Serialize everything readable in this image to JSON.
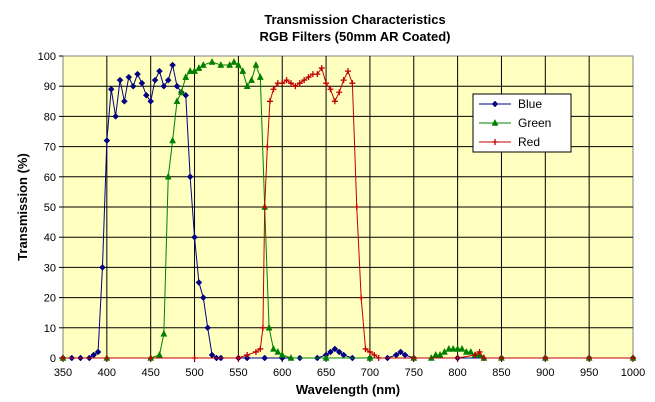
{
  "chart_data": {
    "type": "line",
    "title": "Transmission Characteristics",
    "subtitle": "RGB Filters (50mm AR Coated)",
    "xlabel": "Wavelength (nm)",
    "ylabel": "Transmission (%)",
    "xlim": [
      350,
      1000
    ],
    "ylim": [
      0,
      100
    ],
    "x_ticks": [
      350,
      400,
      450,
      500,
      550,
      600,
      650,
      700,
      750,
      800,
      850,
      900,
      950,
      1000
    ],
    "y_ticks": [
      0,
      10,
      20,
      30,
      40,
      50,
      60,
      70,
      80,
      90,
      100
    ],
    "grid": true,
    "legend_position": "top-right",
    "plot_background": "#FFFFC0",
    "series": [
      {
        "name": "Blue",
        "color": "#000080",
        "marker": "diamond",
        "points": [
          [
            350,
            0
          ],
          [
            360,
            0
          ],
          [
            370,
            0
          ],
          [
            380,
            0
          ],
          [
            385,
            1
          ],
          [
            390,
            2
          ],
          [
            395,
            30
          ],
          [
            400,
            72
          ],
          [
            405,
            89
          ],
          [
            410,
            80
          ],
          [
            415,
            92
          ],
          [
            420,
            85
          ],
          [
            425,
            93
          ],
          [
            430,
            90
          ],
          [
            435,
            94
          ],
          [
            440,
            91
          ],
          [
            445,
            87
          ],
          [
            450,
            85
          ],
          [
            455,
            92
          ],
          [
            460,
            95
          ],
          [
            465,
            90
          ],
          [
            470,
            92
          ],
          [
            475,
            97
          ],
          [
            480,
            90
          ],
          [
            485,
            88
          ],
          [
            490,
            87
          ],
          [
            495,
            60
          ],
          [
            500,
            40
          ],
          [
            505,
            25
          ],
          [
            510,
            20
          ],
          [
            515,
            10
          ],
          [
            520,
            1
          ],
          [
            525,
            0
          ],
          [
            530,
            0
          ],
          [
            550,
            0
          ],
          [
            560,
            0
          ],
          [
            580,
            0
          ],
          [
            600,
            0
          ],
          [
            620,
            0
          ],
          [
            640,
            0
          ],
          [
            650,
            1
          ],
          [
            655,
            2
          ],
          [
            660,
            3
          ],
          [
            665,
            2
          ],
          [
            670,
            1
          ],
          [
            680,
            0
          ],
          [
            700,
            0
          ],
          [
            720,
            0
          ],
          [
            730,
            1
          ],
          [
            735,
            2
          ],
          [
            740,
            1
          ],
          [
            750,
            0
          ],
          [
            800,
            0
          ],
          [
            850,
            0
          ],
          [
            900,
            0
          ],
          [
            950,
            0
          ],
          [
            1000,
            0
          ]
        ]
      },
      {
        "name": "Green",
        "color": "#008000",
        "marker": "triangle",
        "points": [
          [
            350,
            0
          ],
          [
            400,
            0
          ],
          [
            450,
            0
          ],
          [
            460,
            1
          ],
          [
            465,
            8
          ],
          [
            470,
            60
          ],
          [
            475,
            72
          ],
          [
            480,
            85
          ],
          [
            485,
            88
          ],
          [
            490,
            93
          ],
          [
            495,
            95
          ],
          [
            500,
            95
          ],
          [
            505,
            96
          ],
          [
            510,
            97
          ],
          [
            520,
            98
          ],
          [
            530,
            97
          ],
          [
            540,
            97
          ],
          [
            545,
            98
          ],
          [
            550,
            97
          ],
          [
            555,
            95
          ],
          [
            560,
            90
          ],
          [
            565,
            92
          ],
          [
            570,
            97
          ],
          [
            575,
            93
          ],
          [
            580,
            50
          ],
          [
            585,
            10
          ],
          [
            590,
            3
          ],
          [
            595,
            2
          ],
          [
            600,
            1
          ],
          [
            610,
            0
          ],
          [
            650,
            0
          ],
          [
            700,
            0
          ],
          [
            750,
            0
          ],
          [
            770,
            0
          ],
          [
            775,
            1
          ],
          [
            780,
            1
          ],
          [
            785,
            2
          ],
          [
            790,
            3
          ],
          [
            795,
            3
          ],
          [
            800,
            3
          ],
          [
            805,
            3
          ],
          [
            810,
            2
          ],
          [
            815,
            2
          ],
          [
            820,
            1
          ],
          [
            825,
            1
          ],
          [
            830,
            0
          ],
          [
            850,
            0
          ],
          [
            900,
            0
          ],
          [
            950,
            0
          ],
          [
            1000,
            0
          ]
        ]
      },
      {
        "name": "Red",
        "color": "#C00000",
        "marker": "plus",
        "points": [
          [
            350,
            0
          ],
          [
            400,
            0
          ],
          [
            450,
            0
          ],
          [
            500,
            0
          ],
          [
            550,
            0
          ],
          [
            560,
            1
          ],
          [
            570,
            2
          ],
          [
            575,
            3
          ],
          [
            578,
            10
          ],
          [
            580,
            50
          ],
          [
            583,
            70
          ],
          [
            586,
            85
          ],
          [
            590,
            89
          ],
          [
            595,
            91
          ],
          [
            600,
            91
          ],
          [
            605,
            92
          ],
          [
            610,
            91
          ],
          [
            615,
            90
          ],
          [
            620,
            91
          ],
          [
            625,
            92
          ],
          [
            630,
            93
          ],
          [
            635,
            94
          ],
          [
            640,
            94
          ],
          [
            645,
            96
          ],
          [
            650,
            91
          ],
          [
            655,
            89
          ],
          [
            660,
            85
          ],
          [
            665,
            88
          ],
          [
            670,
            92
          ],
          [
            675,
            95
          ],
          [
            680,
            91
          ],
          [
            685,
            50
          ],
          [
            690,
            20
          ],
          [
            695,
            3
          ],
          [
            700,
            2
          ],
          [
            705,
            1
          ],
          [
            710,
            0
          ],
          [
            750,
            0
          ],
          [
            800,
            0
          ],
          [
            820,
            1
          ],
          [
            825,
            2
          ],
          [
            830,
            0
          ],
          [
            850,
            0
          ],
          [
            900,
            0
          ],
          [
            950,
            0
          ],
          [
            1000,
            0
          ]
        ]
      }
    ]
  }
}
